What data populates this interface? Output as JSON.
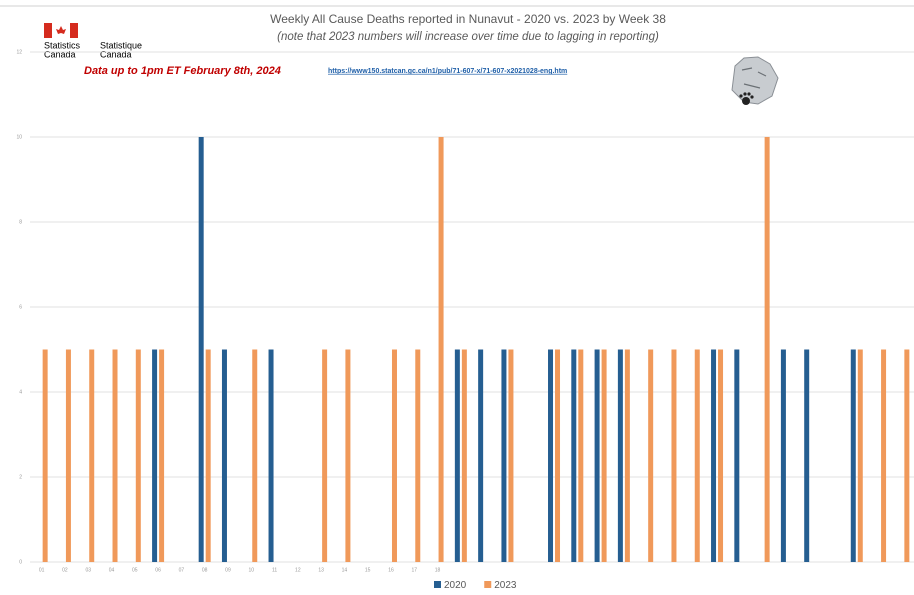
{
  "logo": {
    "english": [
      "Statistics",
      "Canada"
    ],
    "french": [
      "Statistique",
      "Canada"
    ]
  },
  "chart_data": {
    "type": "bar",
    "title": "Weekly All Cause Deaths reported in Nunavut - 2020 vs. 2023 by Week 38",
    "subtitle": "(note that 2023 numbers will increase over time due to lagging in reporting)",
    "annotations": [
      "Data up to 1pm ET February 8th, 2024",
      "https://www150.statcan.gc.ca/n1/pub/71-607-x/71-607-x2021028-eng.htm"
    ],
    "categories": [
      "01",
      "02",
      "03",
      "04",
      "05",
      "06",
      "07",
      "08",
      "09",
      "10",
      "11",
      "12",
      "13",
      "14",
      "15",
      "16",
      "17",
      "18",
      null,
      null,
      null,
      null,
      null,
      null,
      null,
      null,
      null,
      null,
      null,
      null,
      null,
      null,
      null,
      null,
      null,
      null,
      null,
      null
    ],
    "series": [
      {
        "name": "2020",
        "color": "#255e91",
        "values": [
          0,
          0,
          0,
          0,
          0,
          5,
          0,
          10,
          5,
          0,
          5,
          0,
          0,
          0,
          0,
          0,
          0,
          0,
          5,
          5,
          5,
          0,
          5,
          5,
          5,
          5,
          0,
          0,
          0,
          5,
          5,
          0,
          5,
          5,
          0,
          5,
          0,
          0
        ]
      },
      {
        "name": "2023",
        "color": "#f0995a",
        "values": [
          5,
          5,
          5,
          5,
          5,
          5,
          0,
          5,
          0,
          5,
          0,
          0,
          5,
          5,
          0,
          5,
          5,
          10,
          5,
          0,
          5,
          0,
          5,
          5,
          5,
          5,
          5,
          5,
          5,
          5,
          0,
          10,
          0,
          0,
          0,
          5,
          5,
          5
        ]
      }
    ],
    "ylim": [
      0,
      12
    ],
    "yticks": [
      0,
      2,
      4,
      6,
      8,
      10,
      12
    ],
    "grid": true,
    "legend": "bottom"
  }
}
